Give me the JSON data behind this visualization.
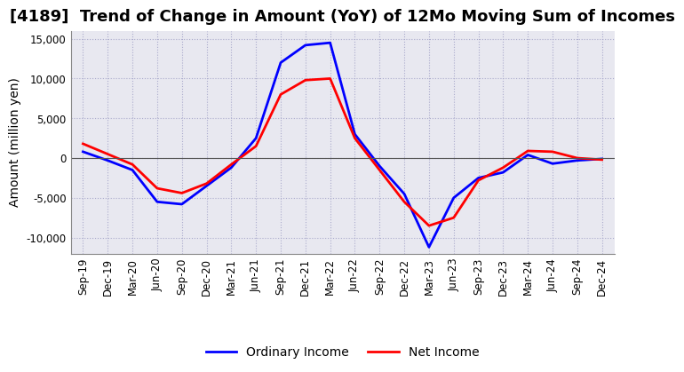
{
  "title": "[4189]  Trend of Change in Amount (YoY) of 12Mo Moving Sum of Incomes",
  "ylabel": "Amount (million yen)",
  "ylim": [
    -12000,
    16000
  ],
  "yticks": [
    -10000,
    -5000,
    0,
    5000,
    10000,
    15000
  ],
  "x_labels": [
    "Sep-19",
    "Dec-19",
    "Mar-20",
    "Jun-20",
    "Sep-20",
    "Dec-20",
    "Mar-21",
    "Jun-21",
    "Sep-21",
    "Dec-21",
    "Mar-22",
    "Jun-22",
    "Sep-22",
    "Dec-22",
    "Mar-23",
    "Jun-23",
    "Sep-23",
    "Dec-23",
    "Mar-24",
    "Jun-24",
    "Sep-24",
    "Dec-24"
  ],
  "ordinary_income": [
    800,
    -300,
    -1500,
    -5500,
    -5800,
    -3500,
    -1200,
    2500,
    12000,
    14200,
    14500,
    3000,
    -1000,
    -4500,
    -11200,
    -5000,
    -2500,
    -1800,
    400,
    -700,
    -300,
    -100
  ],
  "net_income": [
    1800,
    500,
    -800,
    -3800,
    -4400,
    -3200,
    -800,
    1500,
    8000,
    9800,
    10000,
    2500,
    -1500,
    -5500,
    -8500,
    -7500,
    -2800,
    -1200,
    900,
    800,
    0,
    -200
  ],
  "ordinary_color": "#0000FF",
  "net_color": "#FF0000",
  "grid_color": "#AAAACC",
  "background_color": "#FFFFFF",
  "plot_bg_color": "#E8E8F0",
  "title_fontsize": 13,
  "label_fontsize": 10,
  "tick_fontsize": 8.5,
  "legend_fontsize": 10
}
